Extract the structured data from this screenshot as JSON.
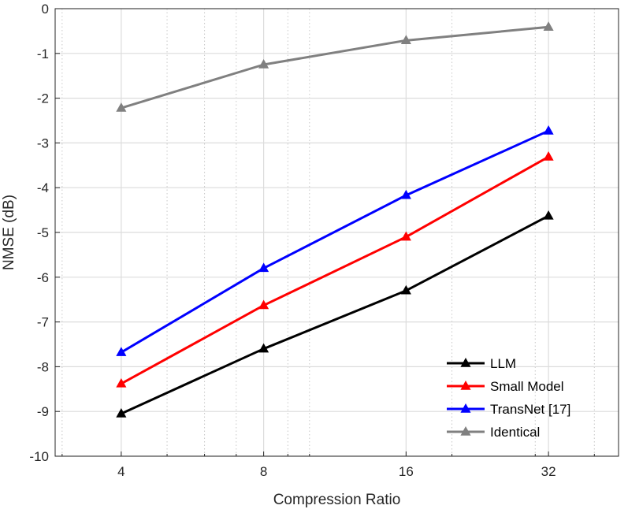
{
  "chart_data": {
    "type": "line",
    "title": "",
    "xlabel": "Compression Ratio",
    "ylabel": "NMSE (dB)",
    "x_scale": "log2",
    "categories": [
      "4",
      "8",
      "16",
      "32"
    ],
    "x": [
      4,
      8,
      16,
      32
    ],
    "xlim": [
      2.9,
      45
    ],
    "ylim": [
      -10,
      0
    ],
    "yticks": [
      0,
      -1,
      -2,
      -3,
      -4,
      -5,
      -6,
      -7,
      -8,
      -9,
      -10
    ],
    "ytick_labels": [
      "0",
      "-1",
      "-2",
      "-3",
      "-4",
      "-5",
      "-6",
      "-7",
      "-8",
      "-9",
      "-10"
    ],
    "grid": true,
    "minor_grid_x": [
      3,
      5,
      6,
      7,
      9,
      10,
      20,
      30,
      40
    ],
    "legend_position": "bottom-right",
    "marker": "triangle",
    "series": [
      {
        "name": "LLM",
        "color": "#000000",
        "values": [
          -9.05,
          -7.6,
          -6.3,
          -4.63
        ]
      },
      {
        "name": "Small Model",
        "color": "#ff0000",
        "values": [
          -8.38,
          -6.63,
          -5.1,
          -3.31
        ]
      },
      {
        "name": "TransNet [17]",
        "color": "#0000ff",
        "values": [
          -7.68,
          -5.8,
          -4.17,
          -2.73
        ]
      },
      {
        "name": "Identical",
        "color": "#808080",
        "values": [
          -2.22,
          -1.25,
          -0.71,
          -0.41
        ]
      }
    ]
  }
}
